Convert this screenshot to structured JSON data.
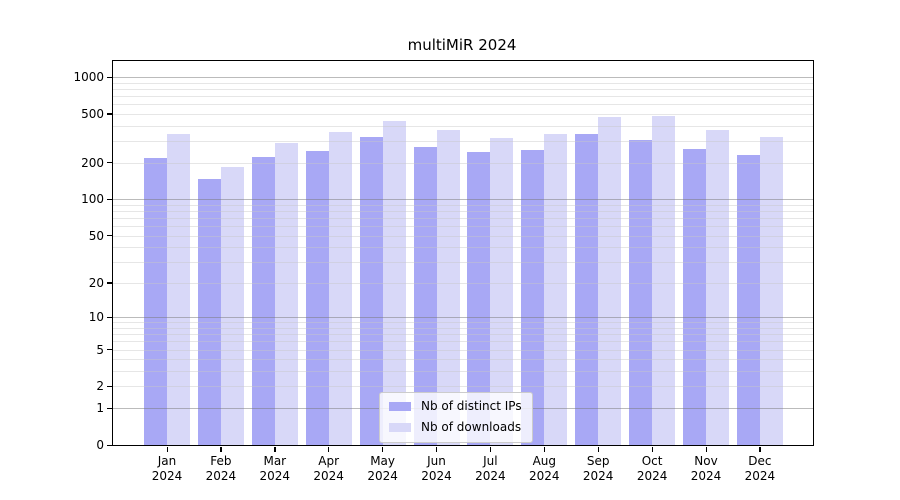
{
  "chart_data": {
    "type": "bar",
    "title": "multiMiR 2024",
    "categories": [
      "Jan",
      "Feb",
      "Mar",
      "Apr",
      "May",
      "Jun",
      "Jul",
      "Aug",
      "Sep",
      "Oct",
      "Nov",
      "Dec"
    ],
    "category_year": "2024",
    "series": [
      {
        "name": "Nb of distinct IPs",
        "color": "#a8a8f5",
        "values": [
          219,
          146,
          222,
          249,
          322,
          268,
          246,
          252,
          344,
          304,
          256,
          229
        ]
      },
      {
        "name": "Nb of downloads",
        "color": "#d8d8f8",
        "values": [
          343,
          184,
          289,
          356,
          440,
          367,
          316,
          345,
          471,
          481,
          369,
          324
        ]
      }
    ],
    "yscale": "log(value+1)",
    "ylim": [
      0,
      1350
    ],
    "yticks": [
      0,
      1,
      2,
      5,
      10,
      20,
      50,
      100,
      200,
      500,
      1000
    ],
    "gridlines": {
      "major": [
        1,
        10,
        100,
        1000
      ],
      "minor": [
        2,
        3,
        4,
        5,
        6,
        7,
        8,
        9,
        20,
        30,
        40,
        50,
        60,
        70,
        80,
        90,
        200,
        300,
        400,
        500,
        600,
        700,
        800,
        900
      ]
    },
    "legend_position": "inside lower-center",
    "colors": {
      "background": "#ffffff",
      "axis": "#000000",
      "bar_distinct_ips": "#a8a8f5",
      "bar_downloads": "#d8d8f8"
    }
  }
}
